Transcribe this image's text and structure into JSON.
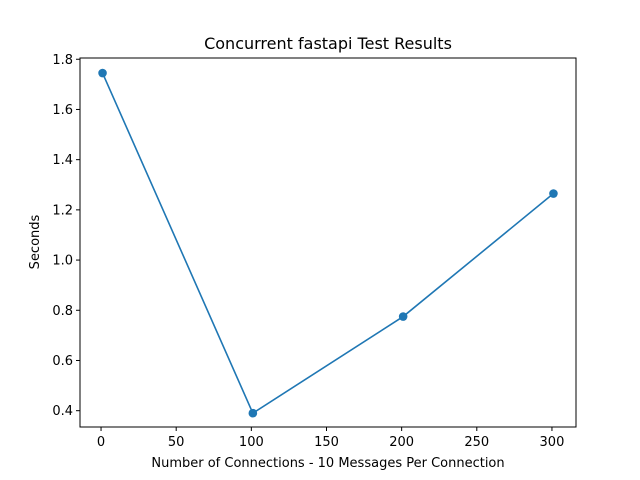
{
  "chart_data": {
    "type": "line",
    "title": "Concurrent fastapi Test Results",
    "xlabel": "Number of Connections - 10 Messages Per Connection",
    "ylabel": "Seconds",
    "xlim": [
      -14,
      316
    ],
    "ylim": [
      0.335,
      1.805
    ],
    "xticks": [
      0,
      50,
      100,
      150,
      200,
      250,
      300
    ],
    "yticks": [
      0.4,
      0.6,
      0.8,
      1.0,
      1.2,
      1.4,
      1.6,
      1.8
    ],
    "xtick_labels": [
      "0",
      "50",
      "100",
      "150",
      "200",
      "250",
      "300"
    ],
    "ytick_labels": [
      "0.4",
      "0.6",
      "0.8",
      "1.0",
      "1.2",
      "1.4",
      "1.6",
      "1.8"
    ],
    "grid": false,
    "series": [
      {
        "color": "#1f77b4",
        "marker": "circle",
        "x": [
          1,
          101,
          201,
          301
        ],
        "y": [
          1.745,
          0.39,
          0.775,
          1.265
        ]
      }
    ]
  }
}
